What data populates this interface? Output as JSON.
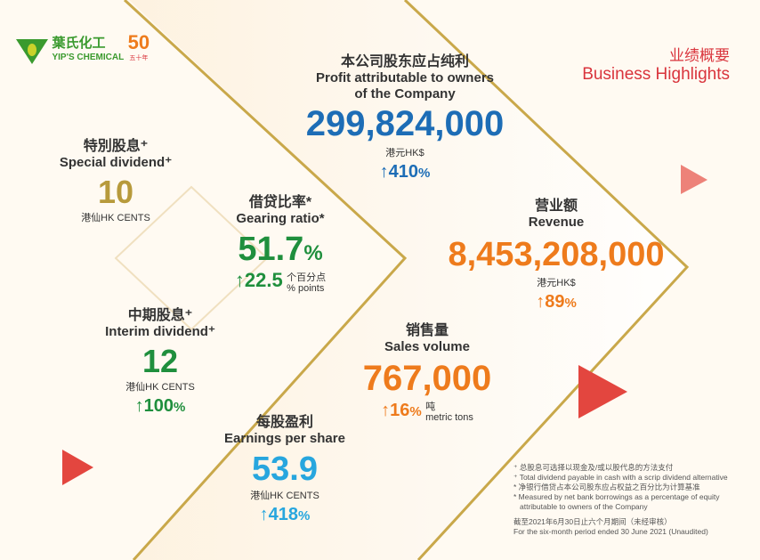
{
  "logo": {
    "name_zh": "葉氏化工",
    "name_en": "YIP'S CHEMICAL",
    "anniversary": "50",
    "anniversary_zh": "五十年"
  },
  "title": {
    "zh": "业绩概要",
    "en": "Business Highlights"
  },
  "colors": {
    "blue": "#1d6db6",
    "green": "#1f8f3d",
    "gold": "#b79a3b",
    "orange": "#ee7b1c",
    "cyan": "#27a6de",
    "red": "#d9343c"
  },
  "profit": {
    "zh": "本公司股东应占纯利",
    "en1": "Profit attributable to owners",
    "en2": "of the Company",
    "value": "299,824,000",
    "unit": "港元HK$",
    "change": "↑410",
    "pct": "%"
  },
  "special": {
    "zh": "特別股息⁺",
    "en": "Special dividend⁺",
    "value": "10",
    "unit": "港仙HK CENTS"
  },
  "gearing": {
    "zh": "借贷比率*",
    "en": "Gearing ratio*",
    "value": "51.7",
    "pct": "%",
    "change": "↑22.5",
    "unit_zh": "个百分点",
    "unit_en": "% points"
  },
  "revenue": {
    "zh": "营业额",
    "en": "Revenue",
    "value": "8,453,208,000",
    "unit": "港元HK$",
    "change": "↑89",
    "pct": "%"
  },
  "interim": {
    "zh": "中期股息⁺",
    "en": "Interim dividend⁺",
    "value": "12",
    "unit": "港仙HK CENTS",
    "change": "↑100",
    "pct": "%"
  },
  "sales": {
    "zh": "销售量",
    "en": "Sales volume",
    "value": "767,000",
    "change": "↑16",
    "pct": "%",
    "unit_zh": "吨",
    "unit_en": "metric tons"
  },
  "eps": {
    "zh": "每股盈利",
    "en": "Earnings per share",
    "value": "53.9",
    "unit": "港仙HK CENTS",
    "change": "↑418",
    "pct": "%"
  },
  "notes": [
    "⁺ 总股息可选择以现金及/或以股代息的方法支付",
    "⁺ Total dividend payable in cash with a scrip dividend alternative",
    "* 净银行借贷占本公司股东应占权益之百分比为计算基准",
    "* Measured by net bank borrowings as a percentage of equity",
    "  attributable to owners of the Company"
  ],
  "period": {
    "zh": "截至2021年6月30日止六个月期间（未经审核）",
    "en": "For the six-month period ended 30 June 2021 (Unaudited)"
  }
}
